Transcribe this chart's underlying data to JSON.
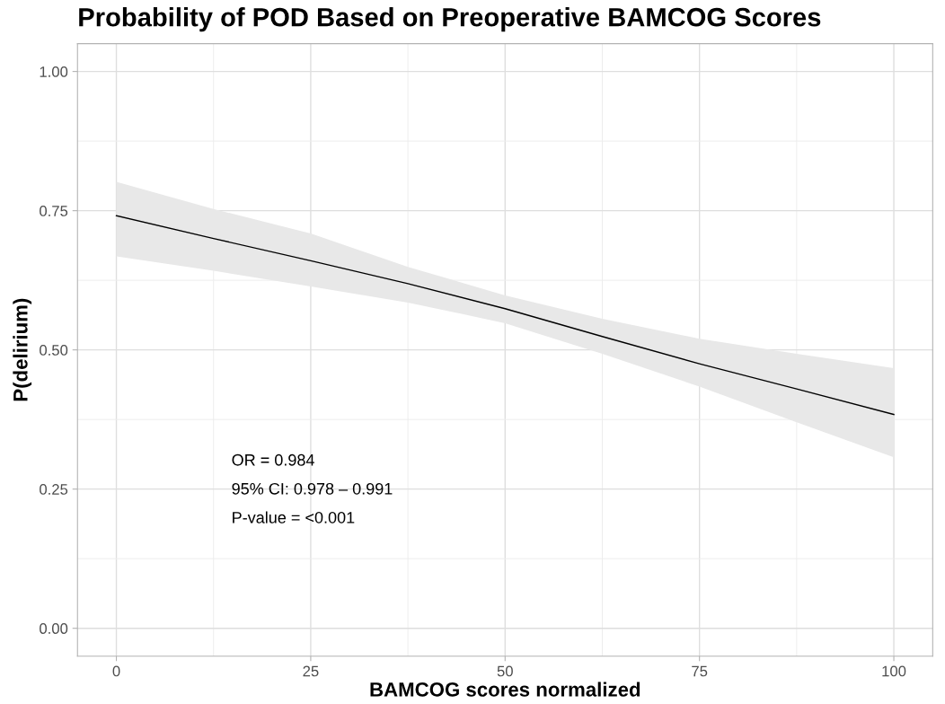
{
  "chart_data": {
    "type": "line",
    "title": "Probability of POD Based on Preoperative BAMCOG Scores",
    "xlabel": "BAMCOG scores normalized",
    "ylabel": "P(delirium)",
    "x": [
      0,
      12.5,
      25,
      37.5,
      50,
      62.5,
      75,
      87.5,
      100
    ],
    "series": [
      {
        "color": "#000000",
        "values": [
          0.741,
          0.7,
          0.66,
          0.619,
          0.574,
          0.524,
          0.475,
          0.43,
          0.384
        ],
        "lower": [
          0.668,
          0.642,
          0.614,
          0.585,
          0.548,
          0.493,
          0.434,
          0.37,
          0.307
        ],
        "upper": [
          0.802,
          0.753,
          0.709,
          0.649,
          0.598,
          0.556,
          0.52,
          0.493,
          0.467
        ]
      }
    ],
    "xlim": [
      -5,
      105
    ],
    "ylim": [
      -0.05,
      1.05
    ],
    "xticks": [
      0,
      25,
      50,
      75,
      100
    ],
    "yticks": [
      {
        "value": 0,
        "label": "0.00"
      },
      {
        "value": 0.25,
        "label": "0.25"
      },
      {
        "value": 0.5,
        "label": "0.50"
      },
      {
        "value": 0.75,
        "label": "0.75"
      },
      {
        "value": 1,
        "label": "1.00"
      }
    ],
    "grid": true,
    "legend": false,
    "marker": "none",
    "line_style": "solid",
    "annotations": [
      "OR = 0.984",
      "95% CI: 0.978 – 0.991",
      "P-value = <0.001"
    ]
  }
}
